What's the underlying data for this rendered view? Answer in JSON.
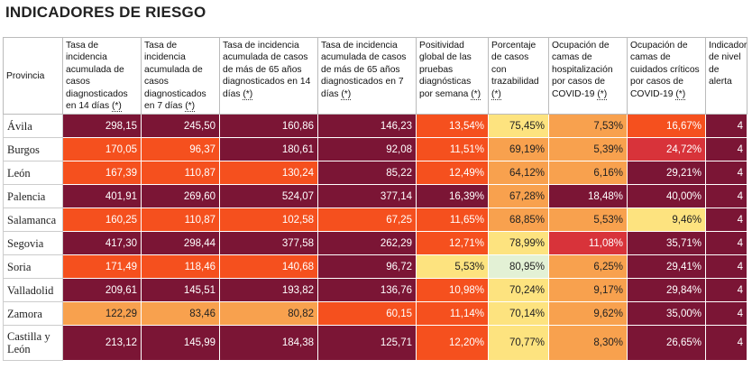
{
  "title": "INDICADORES DE RIESGO",
  "headers": [
    {
      "label": "Provincia",
      "asterisk": ""
    },
    {
      "label": "Tasa de incidencia acumulada de casos diagnosticados en 14 días ",
      "asterisk": "(*)"
    },
    {
      "label": "Tasa de incidencia acumulada de casos diagnosticados en 7 días ",
      "asterisk": "(*)"
    },
    {
      "label": "Tasa de incidencia acumulada de casos de más de 65 años diagnosticados en 14 días ",
      "asterisk": "(*)"
    },
    {
      "label": "Tasa de incidencia acumulada de casos de más de 65 años diagnosticados en 7 días ",
      "asterisk": "(*)"
    },
    {
      "label": "Positividad global de las pruebas diagnósticas por semana ",
      "asterisk": "(*)"
    },
    {
      "label": "Porcentaje de casos con trazabilidad ",
      "asterisk": "(*)"
    },
    {
      "label": "Ocupación de camas de hospitalización por casos de COVID-19 ",
      "asterisk": "(*)"
    },
    {
      "label": "Ocupación de camas de cuidados críticos por casos de COVID-19 ",
      "asterisk": "(*)"
    },
    {
      "label": "Indicador de nivel de alerta",
      "asterisk": ""
    }
  ],
  "colors": {
    "maroon": "#7b1535",
    "red": "#d8333a",
    "orange_red": "#f5501e",
    "orange": "#f8a14e",
    "yellow": "#fde37f",
    "pale_green": "#e3f1d5"
  },
  "rows": [
    {
      "provincia": "Ávila",
      "values": [
        "298,15",
        "245,50",
        "160,86",
        "146,23",
        "13,54%",
        "75,45%",
        "7,53%",
        "16,67%",
        "4"
      ],
      "colors": [
        "maroon",
        "maroon",
        "maroon",
        "maroon",
        "orange_red",
        "yellow",
        "orange",
        "orange_red",
        "maroon"
      ]
    },
    {
      "provincia": "Burgos",
      "values": [
        "170,05",
        "96,37",
        "180,61",
        "92,08",
        "11,51%",
        "69,19%",
        "5,39%",
        "24,72%",
        "4"
      ],
      "colors": [
        "orange_red",
        "orange_red",
        "maroon",
        "maroon",
        "orange_red",
        "orange",
        "orange",
        "red",
        "maroon"
      ]
    },
    {
      "provincia": "León",
      "values": [
        "167,39",
        "110,87",
        "130,24",
        "85,22",
        "12,49%",
        "64,12%",
        "6,16%",
        "29,21%",
        "4"
      ],
      "colors": [
        "orange_red",
        "orange_red",
        "orange_red",
        "maroon",
        "orange_red",
        "orange",
        "orange",
        "maroon",
        "maroon"
      ]
    },
    {
      "provincia": "Palencia",
      "values": [
        "401,91",
        "269,60",
        "524,07",
        "377,14",
        "16,39%",
        "67,28%",
        "18,48%",
        "40,00%",
        "4"
      ],
      "colors": [
        "maroon",
        "maroon",
        "maroon",
        "maroon",
        "maroon",
        "orange",
        "maroon",
        "maroon",
        "maroon"
      ]
    },
    {
      "provincia": "Salamanca",
      "values": [
        "160,25",
        "110,87",
        "102,58",
        "67,25",
        "11,65%",
        "68,85%",
        "5,53%",
        "9,46%",
        "4"
      ],
      "colors": [
        "orange_red",
        "orange_red",
        "orange_red",
        "orange_red",
        "orange_red",
        "orange",
        "orange",
        "yellow",
        "maroon"
      ]
    },
    {
      "provincia": "Segovia",
      "values": [
        "417,30",
        "298,44",
        "377,58",
        "262,29",
        "12,71%",
        "78,99%",
        "11,08%",
        "35,71%",
        "4"
      ],
      "colors": [
        "maroon",
        "maroon",
        "maroon",
        "maroon",
        "orange_red",
        "yellow",
        "red",
        "maroon",
        "maroon"
      ]
    },
    {
      "provincia": "Soria",
      "values": [
        "171,49",
        "118,46",
        "140,68",
        "96,72",
        "5,53%",
        "80,95%",
        "6,25%",
        "29,41%",
        "4"
      ],
      "colors": [
        "orange_red",
        "orange_red",
        "orange_red",
        "maroon",
        "yellow",
        "pale_green",
        "orange",
        "maroon",
        "maroon"
      ]
    },
    {
      "provincia": "Valladolid",
      "values": [
        "209,61",
        "145,51",
        "193,82",
        "136,76",
        "10,98%",
        "70,24%",
        "9,17%",
        "29,84%",
        "4"
      ],
      "colors": [
        "maroon",
        "maroon",
        "maroon",
        "maroon",
        "orange_red",
        "yellow",
        "orange",
        "maroon",
        "maroon"
      ]
    },
    {
      "provincia": "Zamora",
      "values": [
        "122,29",
        "83,46",
        "80,82",
        "60,15",
        "11,14%",
        "70,14%",
        "9,62%",
        "35,00%",
        "4"
      ],
      "colors": [
        "orange",
        "orange",
        "orange",
        "orange_red",
        "orange_red",
        "yellow",
        "orange",
        "maroon",
        "maroon"
      ]
    },
    {
      "provincia": "Castilla y León",
      "values": [
        "213,12",
        "145,99",
        "184,38",
        "125,71",
        "12,20%",
        "70,77%",
        "8,30%",
        "26,65%",
        "4"
      ],
      "colors": [
        "maroon",
        "maroon",
        "maroon",
        "maroon",
        "orange_red",
        "yellow",
        "orange",
        "maroon",
        "maroon"
      ]
    }
  ]
}
